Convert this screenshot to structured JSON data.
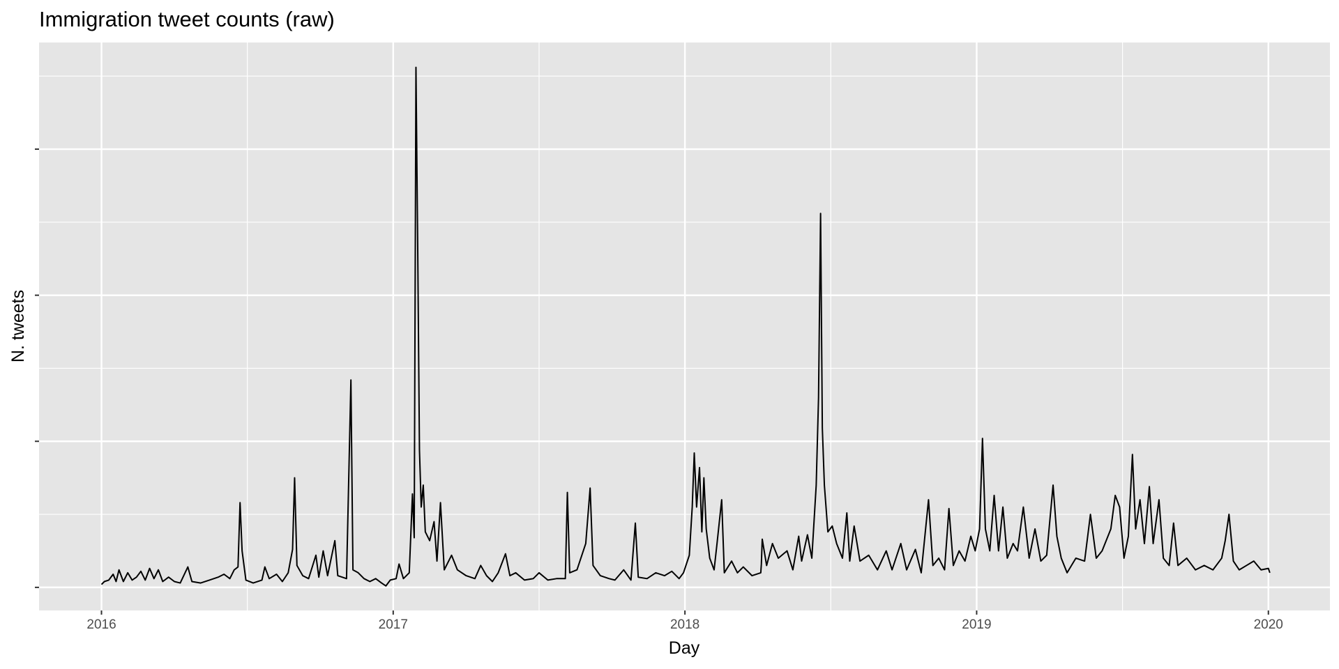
{
  "chart_data": {
    "type": "line",
    "title": "Immigration tweet counts (raw)",
    "x_label": "Day",
    "y_label": "N. tweets",
    "color": "#000000",
    "grid": true,
    "y_tick_labels": false,
    "xlim": [
      2015.786,
      2020.211
    ],
    "xticks": [
      2016,
      2017,
      2018,
      2019,
      2020
    ],
    "ylim": [
      -0.158,
      3.73
    ],
    "yticks": [
      0,
      1,
      2,
      3
    ],
    "x": [
      2016.0,
      2016.01,
      2016.025,
      2016.04,
      2016.05,
      2016.06,
      2016.075,
      2016.09,
      2016.105,
      2016.12,
      2016.135,
      2016.15,
      2016.165,
      2016.18,
      2016.195,
      2016.21,
      2016.23,
      2016.25,
      2016.27,
      2016.296,
      2016.31,
      2016.34,
      2016.37,
      2016.4,
      2016.42,
      2016.44,
      2016.455,
      2016.468,
      2016.475,
      2016.482,
      2016.495,
      2016.52,
      2016.55,
      2016.56,
      2016.575,
      2016.6,
      2016.62,
      2016.64,
      2016.655,
      2016.662,
      2016.67,
      2016.69,
      2016.71,
      2016.735,
      2016.745,
      2016.76,
      2016.775,
      2016.8,
      2016.81,
      2016.84,
      2016.855,
      2016.862,
      2016.88,
      2016.9,
      2016.92,
      2016.94,
      2016.96,
      2016.975,
      2016.99,
      2017.01,
      2017.02,
      2017.035,
      2017.055,
      2017.066,
      2017.072,
      2017.078,
      2017.084,
      2017.09,
      2017.096,
      2017.103,
      2017.11,
      2017.125,
      2017.14,
      2017.15,
      2017.162,
      2017.175,
      2017.2,
      2017.22,
      2017.25,
      2017.28,
      2017.3,
      2017.32,
      2017.34,
      2017.36,
      2017.385,
      2017.4,
      2017.42,
      2017.45,
      2017.48,
      2017.5,
      2017.53,
      2017.56,
      2017.59,
      2017.597,
      2017.605,
      2017.63,
      2017.66,
      2017.675,
      2017.685,
      2017.71,
      2017.74,
      2017.76,
      2017.79,
      2017.815,
      2017.83,
      2017.84,
      2017.87,
      2017.9,
      2017.93,
      2017.955,
      2017.98,
      2017.995,
      2018.015,
      2018.025,
      2018.032,
      2018.04,
      2018.05,
      2018.058,
      2018.065,
      2018.073,
      2018.085,
      2018.1,
      2018.11,
      2018.126,
      2018.135,
      2018.16,
      2018.18,
      2018.2,
      2018.23,
      2018.26,
      2018.262,
      2018.265,
      2018.28,
      2018.3,
      2018.32,
      2018.35,
      2018.37,
      2018.39,
      2018.4,
      2018.42,
      2018.435,
      2018.45,
      2018.458,
      2018.465,
      2018.471,
      2018.478,
      2018.49,
      2018.505,
      2018.52,
      2018.54,
      2018.555,
      2018.565,
      2018.58,
      2018.6,
      2018.63,
      2018.66,
      2018.69,
      2018.71,
      2018.74,
      2018.76,
      2018.79,
      2018.81,
      2018.835,
      2018.85,
      2018.87,
      2018.89,
      2018.905,
      2018.92,
      2018.94,
      2018.96,
      2018.98,
      2018.995,
      2019.01,
      2019.02,
      2019.03,
      2019.045,
      2019.06,
      2019.075,
      2019.09,
      2019.105,
      2019.125,
      2019.14,
      2019.16,
      2019.18,
      2019.2,
      2019.22,
      2019.24,
      2019.262,
      2019.275,
      2019.29,
      2019.31,
      2019.34,
      2019.37,
      2019.39,
      2019.41,
      2019.43,
      2019.46,
      2019.475,
      2019.49,
      2019.505,
      2019.52,
      2019.534,
      2019.545,
      2019.56,
      2019.575,
      2019.592,
      2019.605,
      2019.625,
      2019.64,
      2019.66,
      2019.675,
      2019.69,
      2019.72,
      2019.75,
      2019.78,
      2019.81,
      2019.84,
      2019.852,
      2019.865,
      2019.88,
      2019.9,
      2019.925,
      2019.95,
      2019.975,
      2020.0,
      2020.005
    ],
    "series": [
      {
        "values": [
          0.02,
          0.04,
          0.05,
          0.09,
          0.04,
          0.12,
          0.04,
          0.1,
          0.05,
          0.07,
          0.11,
          0.05,
          0.13,
          0.06,
          0.12,
          0.04,
          0.07,
          0.04,
          0.03,
          0.14,
          0.04,
          0.03,
          0.05,
          0.07,
          0.09,
          0.06,
          0.12,
          0.14,
          0.58,
          0.25,
          0.05,
          0.03,
          0.05,
          0.14,
          0.06,
          0.09,
          0.04,
          0.1,
          0.26,
          0.75,
          0.15,
          0.08,
          0.06,
          0.22,
          0.07,
          0.25,
          0.08,
          0.32,
          0.08,
          0.06,
          1.42,
          0.12,
          0.1,
          0.06,
          0.04,
          0.06,
          0.03,
          0.01,
          0.05,
          0.06,
          0.16,
          0.06,
          0.1,
          0.64,
          0.34,
          3.56,
          2.33,
          0.94,
          0.55,
          0.7,
          0.38,
          0.32,
          0.45,
          0.18,
          0.58,
          0.12,
          0.22,
          0.12,
          0.08,
          0.06,
          0.15,
          0.08,
          0.04,
          0.1,
          0.23,
          0.08,
          0.1,
          0.05,
          0.06,
          0.1,
          0.05,
          0.06,
          0.06,
          0.65,
          0.1,
          0.12,
          0.3,
          0.68,
          0.15,
          0.08,
          0.06,
          0.05,
          0.12,
          0.05,
          0.44,
          0.07,
          0.06,
          0.1,
          0.08,
          0.11,
          0.06,
          0.1,
          0.22,
          0.55,
          0.92,
          0.55,
          0.82,
          0.38,
          0.75,
          0.4,
          0.2,
          0.12,
          0.3,
          0.6,
          0.1,
          0.18,
          0.1,
          0.14,
          0.08,
          0.1,
          0.16,
          0.33,
          0.15,
          0.3,
          0.2,
          0.25,
          0.12,
          0.35,
          0.18,
          0.36,
          0.2,
          0.7,
          1.3,
          2.56,
          1.09,
          0.7,
          0.38,
          0.42,
          0.3,
          0.2,
          0.51,
          0.18,
          0.42,
          0.18,
          0.22,
          0.12,
          0.25,
          0.12,
          0.3,
          0.12,
          0.26,
          0.1,
          0.6,
          0.15,
          0.2,
          0.12,
          0.54,
          0.15,
          0.25,
          0.18,
          0.35,
          0.25,
          0.4,
          1.02,
          0.4,
          0.25,
          0.63,
          0.25,
          0.55,
          0.2,
          0.3,
          0.25,
          0.55,
          0.2,
          0.4,
          0.18,
          0.22,
          0.7,
          0.35,
          0.2,
          0.1,
          0.2,
          0.18,
          0.5,
          0.2,
          0.25,
          0.4,
          0.63,
          0.55,
          0.2,
          0.35,
          0.91,
          0.4,
          0.6,
          0.3,
          0.69,
          0.3,
          0.6,
          0.2,
          0.15,
          0.44,
          0.15,
          0.2,
          0.12,
          0.15,
          0.12,
          0.2,
          0.32,
          0.5,
          0.18,
          0.12,
          0.15,
          0.18,
          0.12,
          0.13,
          0.1
        ]
      }
    ]
  }
}
